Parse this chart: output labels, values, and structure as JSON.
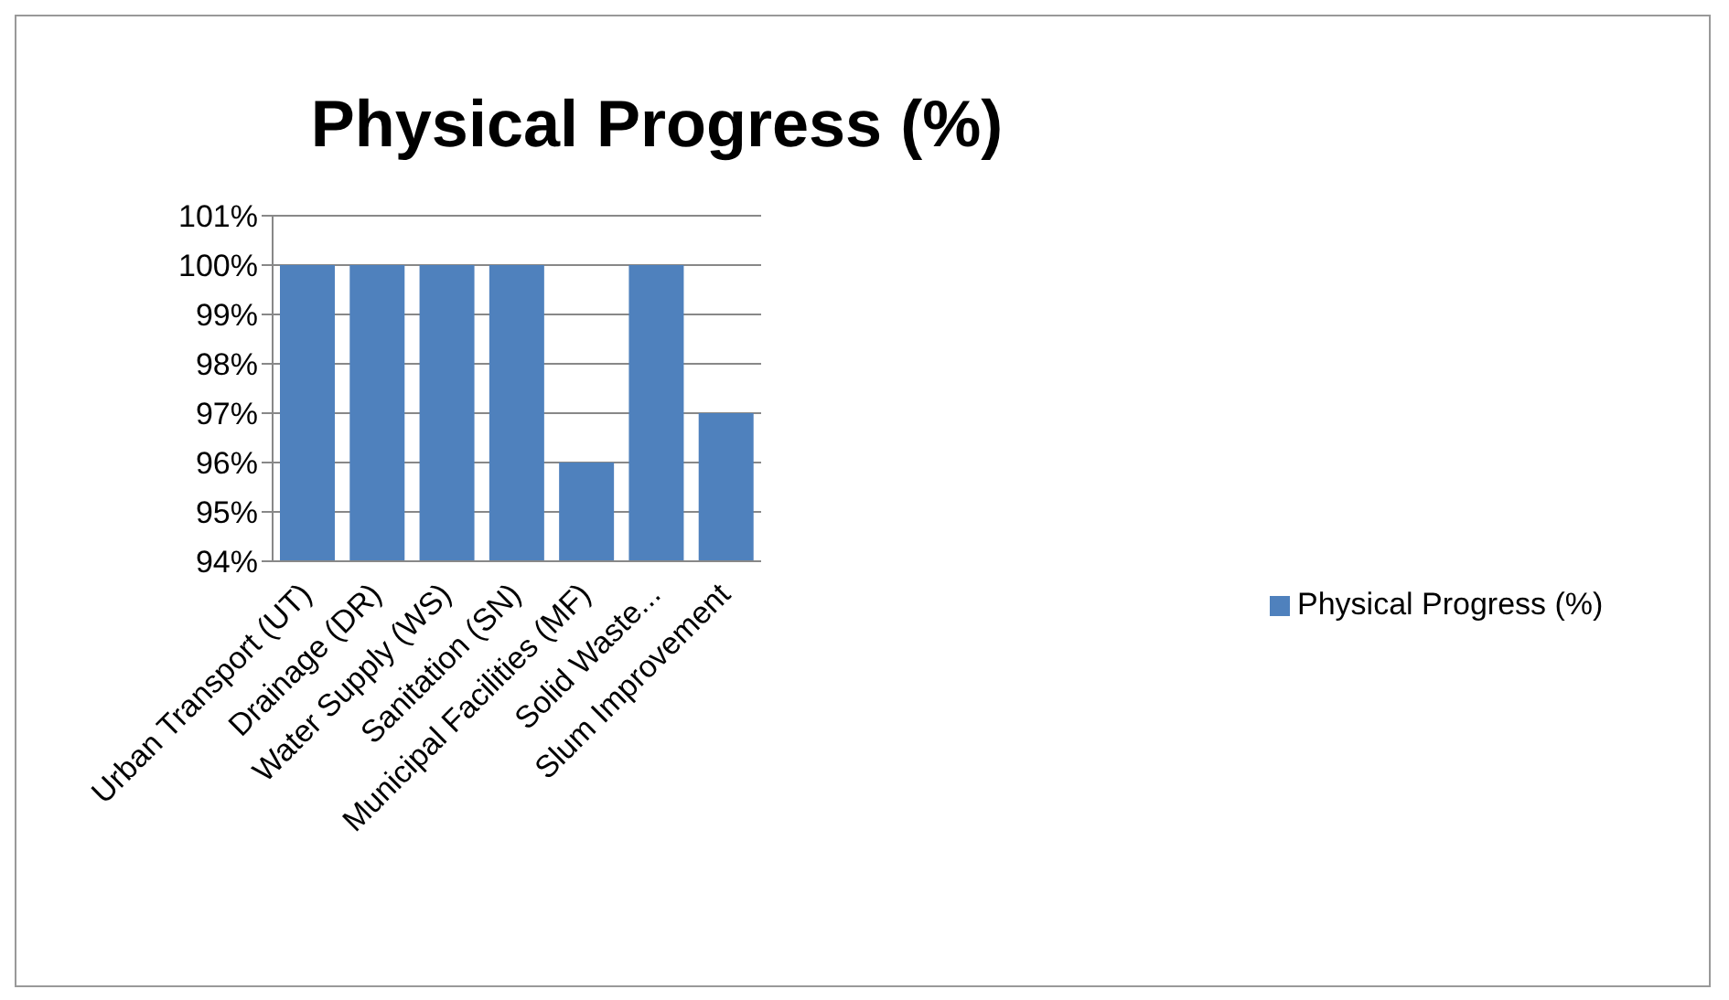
{
  "chart_data": {
    "type": "bar",
    "title": "Physical Progress (%)",
    "categories": [
      "Urban Transport (UT)",
      "Drainage (DR)",
      "Water Supply (WS)",
      "Sanitation (SN)",
      "Municipal Facilities (MF)",
      "Solid Waste...",
      "Slum Improvement"
    ],
    "series": [
      {
        "name": "Physical Progress (%)",
        "color": "#4f81bd",
        "values": [
          100,
          100,
          100,
          100,
          96,
          100,
          97
        ]
      }
    ],
    "ylim": [
      94,
      101
    ],
    "yticks": [
      {
        "value": 94,
        "label": "94%"
      },
      {
        "value": 95,
        "label": "95%"
      },
      {
        "value": 96,
        "label": "96%"
      },
      {
        "value": 97,
        "label": "97%"
      },
      {
        "value": 98,
        "label": "98%"
      },
      {
        "value": 99,
        "label": "99%"
      },
      {
        "value": 100,
        "label": "100%"
      },
      {
        "value": 101,
        "label": "101%"
      }
    ],
    "grid": "y",
    "legend": "right"
  }
}
